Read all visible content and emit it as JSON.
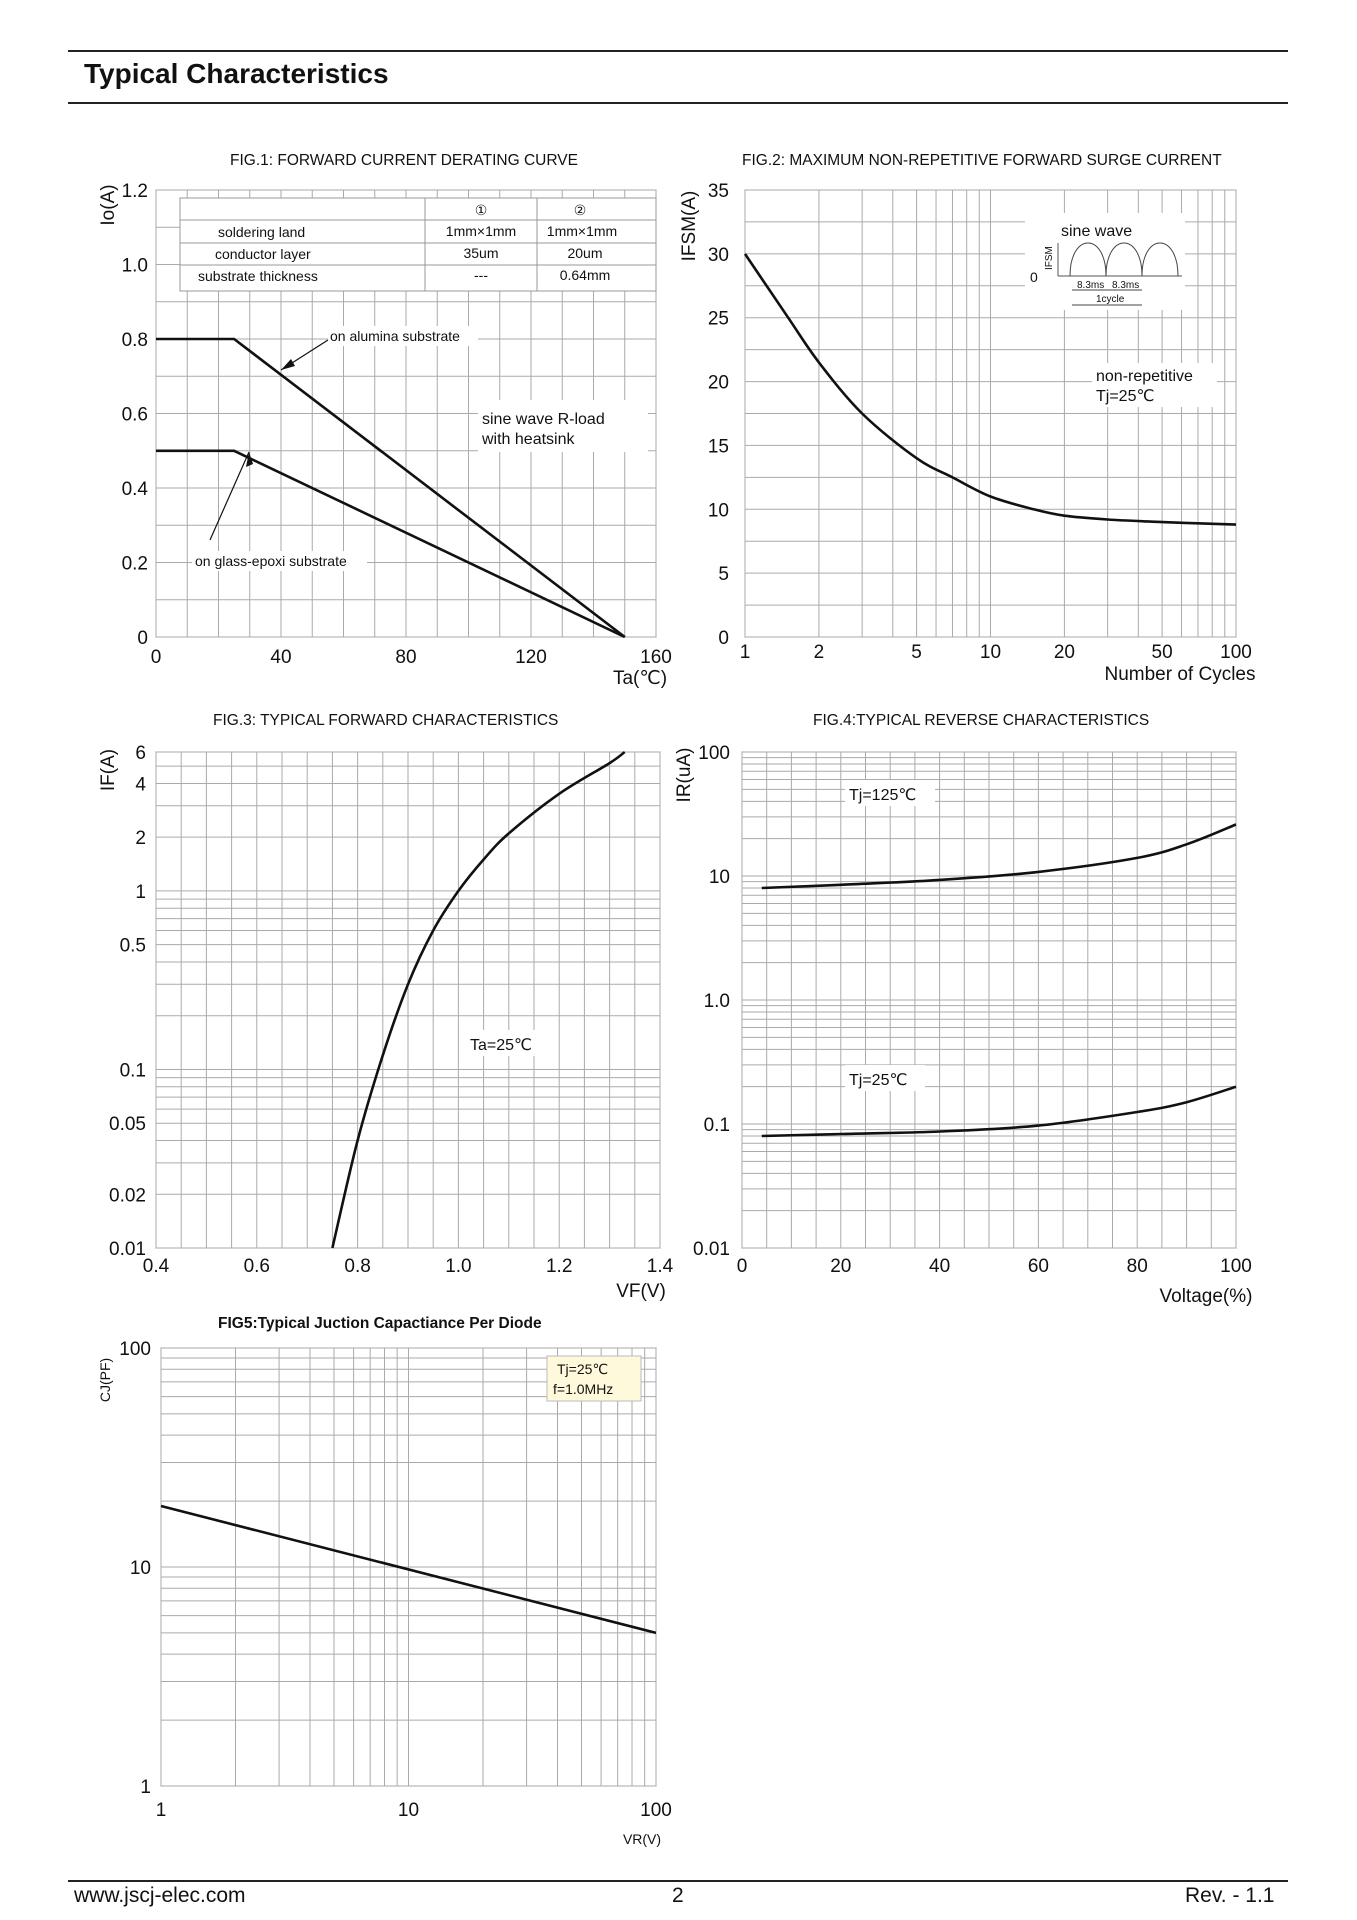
{
  "page": {
    "title": "Typical Characteristics",
    "footer": {
      "url": "www.jscj-elec.com",
      "page": "2",
      "rev": "Rev. - 1.1"
    }
  },
  "chart_data": [
    {
      "id": "fig1",
      "type": "line",
      "title": "FIG.1: FORWARD CURRENT  DERATING CURVE",
      "xlabel": "Ta(℃)",
      "ylabel": "Io(A)",
      "xlim": [
        0,
        160
      ],
      "ylim": [
        0,
        1.2
      ],
      "xticks": [
        "0",
        "40",
        "80",
        "120",
        "160"
      ],
      "yticks": [
        "0",
        "0.2",
        "0.4",
        "0.6",
        "0.8",
        "1.0",
        "1.2"
      ],
      "series": [
        {
          "name": "on alumina substrate",
          "x": [
            0,
            25,
            150
          ],
          "y": [
            0.8,
            0.8,
            0
          ]
        },
        {
          "name": "on glass-epoxi substrate",
          "x": [
            0,
            25,
            150
          ],
          "y": [
            0.5,
            0.5,
            0
          ]
        }
      ],
      "annotations": [
        "sine wave R-load",
        "with heatsink"
      ],
      "table": {
        "headers": [
          "",
          "①",
          "②"
        ],
        "rows": [
          [
            "soldering land",
            "1mm×1mm",
            "1mm×1mm"
          ],
          [
            "conductor layer",
            "35um",
            "20um"
          ],
          [
            "substrate thickness",
            "---",
            "0.64mm"
          ]
        ]
      }
    },
    {
      "id": "fig2",
      "type": "line",
      "title": "FIG.2: MAXIMUM NON-REPETITIVE FORWARD SURGE CURRENT",
      "xlabel": "Number of Cycles",
      "ylabel": "IFSM(A)",
      "xscale": "log",
      "xlim": [
        1,
        100
      ],
      "ylim": [
        0,
        35
      ],
      "xticks": [
        "1",
        "2",
        "5",
        "10",
        "20",
        "50",
        "100"
      ],
      "yticks": [
        "0",
        "5",
        "10",
        "15",
        "20",
        "25",
        "30",
        "35"
      ],
      "series": [
        {
          "name": "IFSM",
          "x": [
            1,
            1.5,
            2,
            3,
            5,
            7,
            10,
            15,
            20,
            30,
            50,
            70,
            100
          ],
          "y": [
            30,
            25,
            21.5,
            17.5,
            14,
            12.5,
            11,
            10,
            9.5,
            9.2,
            9,
            8.9,
            8.8
          ]
        }
      ],
      "annotations": [
        "non-repetitive",
        "Tj=25℃"
      ],
      "inset": {
        "label": "sine wave",
        "ylabel": "IFSM",
        "zero": "0",
        "half_period": "8.3ms",
        "cycle": "1cycle"
      }
    },
    {
      "id": "fig3",
      "type": "line",
      "title": "FIG.3: TYPICAL FORWARD CHARACTERISTICS",
      "xlabel": "VF(V)",
      "ylabel": "IF(A)",
      "yscale": "log",
      "xlim": [
        0.4,
        1.4
      ],
      "ylim": [
        0.01,
        6
      ],
      "xticks": [
        "0.4",
        "0.6",
        "0.8",
        "1.0",
        "1.2",
        "1.4"
      ],
      "yticks": [
        "0.01",
        "0.02",
        "0.05",
        "0.1",
        "0.5",
        "1",
        "2",
        "4",
        "6"
      ],
      "series": [
        {
          "name": "Ta=25℃",
          "x": [
            0.75,
            0.8,
            0.85,
            0.9,
            0.95,
            1.0,
            1.05,
            1.1,
            1.2,
            1.3,
            1.33
          ],
          "y": [
            0.01,
            0.04,
            0.12,
            0.3,
            0.6,
            1.0,
            1.5,
            2.1,
            3.5,
            5.2,
            6
          ]
        }
      ],
      "annotations": [
        "Ta=25℃"
      ]
    },
    {
      "id": "fig4",
      "type": "line",
      "title": "FIG.4:TYPICAL REVERSE CHARACTERISTICS",
      "xlabel": "Voltage(%)",
      "ylabel": "IR(uA)",
      "yscale": "log",
      "xlim": [
        0,
        100
      ],
      "ylim": [
        0.01,
        100
      ],
      "xticks": [
        "0",
        "20",
        "40",
        "60",
        "80",
        "100"
      ],
      "yticks": [
        "0.01",
        "0.1",
        "1.0",
        "10",
        "100"
      ],
      "series": [
        {
          "name": "Tj=125℃",
          "x": [
            4,
            20,
            40,
            60,
            80,
            90,
            100
          ],
          "y": [
            8,
            8.5,
            9.3,
            10.8,
            14,
            18,
            26
          ]
        },
        {
          "name": "Tj=25℃",
          "x": [
            4,
            20,
            40,
            60,
            80,
            90,
            100
          ],
          "y": [
            0.08,
            0.083,
            0.087,
            0.097,
            0.125,
            0.15,
            0.2
          ]
        }
      ],
      "annotations": [
        "Tj=125℃",
        "Tj=25℃"
      ]
    },
    {
      "id": "fig5",
      "type": "line",
      "title": "FIG5:Typical  Juction Capactiance Per Diode",
      "xlabel": "VR(V)",
      "ylabel": "CJ(PF)",
      "xscale": "log",
      "yscale": "log",
      "xlim": [
        1,
        100
      ],
      "ylim": [
        1,
        100
      ],
      "xticks": [
        "1",
        "10",
        "100"
      ],
      "yticks": [
        "1",
        "10",
        "100"
      ],
      "series": [
        {
          "name": "CJ",
          "x": [
            1,
            100
          ],
          "y": [
            19,
            5
          ]
        }
      ],
      "legend": [
        "Tj=25℃",
        "f=1.0MHz"
      ]
    }
  ]
}
